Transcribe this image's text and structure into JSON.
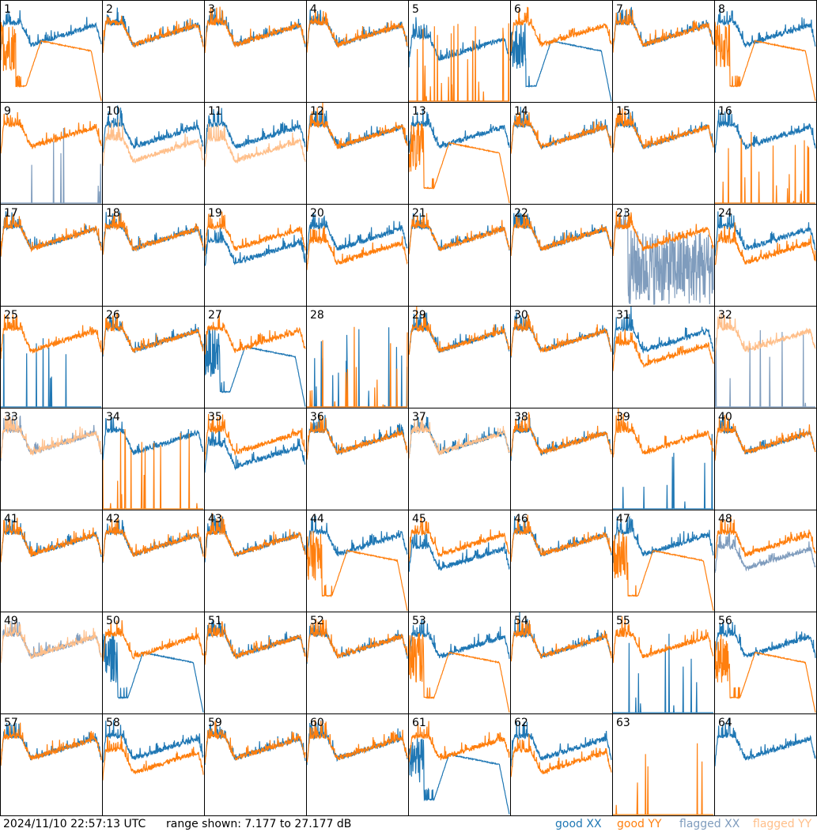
{
  "footer": {
    "timestamp": "2024/11/10 22:57:13 UTC",
    "range": "range shown: 7.177 to 27.177 dB"
  },
  "legend": [
    {
      "label": "good XX",
      "color": "#1f77b4"
    },
    {
      "label": "good YY",
      "color": "#ff7f0e"
    },
    {
      "label": "flagged XX",
      "color": "#7f9cbd"
    },
    {
      "label": "flagged YY",
      "color": "#ffbf8a"
    }
  ],
  "chart_data": {
    "type": "line",
    "title": "",
    "layout": "8x8 grid of small multiples",
    "ylim_db": [
      7.177,
      27.177
    ],
    "series_kinds": [
      "XX",
      "YY"
    ],
    "shape_legend": {
      "bp": "typical bandpass: early peak, dip, rising slope",
      "hump": "smooth hump with deep early dip and roll-off",
      "low": "bandpass shifted lower",
      "spikes": "mostly at floor with sparse spikes",
      "noisy": "dense noise across full range",
      "none": "not shown"
    },
    "panels": [
      {
        "id": "1",
        "xx": [
          "good",
          "bp"
        ],
        "yy": [
          "good",
          "hump"
        ]
      },
      {
        "id": "2",
        "xx": [
          "good",
          "bp"
        ],
        "yy": [
          "good",
          "bp"
        ]
      },
      {
        "id": "3",
        "xx": [
          "good",
          "bp"
        ],
        "yy": [
          "good",
          "bp"
        ]
      },
      {
        "id": "4",
        "xx": [
          "good",
          "bp"
        ],
        "yy": [
          "good",
          "bp"
        ]
      },
      {
        "id": "5",
        "xx": [
          "good",
          "low"
        ],
        "yy": [
          "good",
          "spikes"
        ]
      },
      {
        "id": "6",
        "xx": [
          "good",
          "hump"
        ],
        "yy": [
          "good",
          "bp"
        ]
      },
      {
        "id": "7",
        "xx": [
          "good",
          "bp"
        ],
        "yy": [
          "good",
          "bp"
        ]
      },
      {
        "id": "8",
        "xx": [
          "good",
          "bp"
        ],
        "yy": [
          "good",
          "hump"
        ]
      },
      {
        "id": "9",
        "xx": [
          "flagged",
          "spikes"
        ],
        "yy": [
          "good",
          "bp"
        ]
      },
      {
        "id": "10",
        "xx": [
          "good",
          "bp"
        ],
        "yy": [
          "flagged",
          "low"
        ]
      },
      {
        "id": "11",
        "xx": [
          "good",
          "bp"
        ],
        "yy": [
          "flagged",
          "low"
        ]
      },
      {
        "id": "12",
        "xx": [
          "good",
          "bp"
        ],
        "yy": [
          "good",
          "bp"
        ]
      },
      {
        "id": "13",
        "xx": [
          "good",
          "bp"
        ],
        "yy": [
          "good",
          "hump"
        ]
      },
      {
        "id": "14",
        "xx": [
          "good",
          "bp"
        ],
        "yy": [
          "good",
          "bp"
        ]
      },
      {
        "id": "15",
        "xx": [
          "good",
          "bp"
        ],
        "yy": [
          "good",
          "bp"
        ]
      },
      {
        "id": "16",
        "xx": [
          "good",
          "bp"
        ],
        "yy": [
          "good",
          "spikes"
        ]
      },
      {
        "id": "17",
        "xx": [
          "good",
          "bp"
        ],
        "yy": [
          "good",
          "bp"
        ]
      },
      {
        "id": "18",
        "xx": [
          "good",
          "bp"
        ],
        "yy": [
          "good",
          "bp"
        ]
      },
      {
        "id": "19",
        "xx": [
          "good",
          "low"
        ],
        "yy": [
          "good",
          "bp"
        ]
      },
      {
        "id": "20",
        "xx": [
          "good",
          "bp"
        ],
        "yy": [
          "good",
          "low"
        ]
      },
      {
        "id": "21",
        "xx": [
          "good",
          "bp"
        ],
        "yy": [
          "good",
          "bp"
        ]
      },
      {
        "id": "22",
        "xx": [
          "good",
          "bp"
        ],
        "yy": [
          "good",
          "bp"
        ]
      },
      {
        "id": "23",
        "xx": [
          "flagged",
          "noisy"
        ],
        "yy": [
          "good",
          "bp"
        ]
      },
      {
        "id": "24",
        "xx": [
          "good",
          "bp"
        ],
        "yy": [
          "good",
          "low"
        ]
      },
      {
        "id": "25",
        "xx": [
          "good",
          "spikes"
        ],
        "yy": [
          "good",
          "bp"
        ]
      },
      {
        "id": "26",
        "xx": [
          "good",
          "bp"
        ],
        "yy": [
          "good",
          "bp"
        ]
      },
      {
        "id": "27",
        "xx": [
          "good",
          "hump"
        ],
        "yy": [
          "good",
          "bp"
        ]
      },
      {
        "id": "28",
        "xx": [
          "good",
          "spikes"
        ],
        "yy": [
          "good",
          "spikes"
        ]
      },
      {
        "id": "29",
        "xx": [
          "good",
          "bp"
        ],
        "yy": [
          "good",
          "bp"
        ]
      },
      {
        "id": "30",
        "xx": [
          "good",
          "bp"
        ],
        "yy": [
          "good",
          "bp"
        ]
      },
      {
        "id": "31",
        "xx": [
          "good",
          "bp"
        ],
        "yy": [
          "good",
          "low"
        ]
      },
      {
        "id": "32",
        "xx": [
          "flagged",
          "spikes"
        ],
        "yy": [
          "flagged",
          "bp"
        ]
      },
      {
        "id": "33",
        "xx": [
          "flagged",
          "bp"
        ],
        "yy": [
          "flagged",
          "bp"
        ]
      },
      {
        "id": "34",
        "xx": [
          "good",
          "bp"
        ],
        "yy": [
          "good",
          "spikes"
        ]
      },
      {
        "id": "35",
        "xx": [
          "good",
          "low"
        ],
        "yy": [
          "good",
          "bp"
        ]
      },
      {
        "id": "36",
        "xx": [
          "good",
          "bp"
        ],
        "yy": [
          "good",
          "bp"
        ]
      },
      {
        "id": "37",
        "xx": [
          "good",
          "bp"
        ],
        "yy": [
          "flagged",
          "bp"
        ]
      },
      {
        "id": "38",
        "xx": [
          "good",
          "bp"
        ],
        "yy": [
          "good",
          "bp"
        ]
      },
      {
        "id": "39",
        "xx": [
          "good",
          "spikes"
        ],
        "yy": [
          "good",
          "bp"
        ]
      },
      {
        "id": "40",
        "xx": [
          "good",
          "bp"
        ],
        "yy": [
          "good",
          "bp"
        ]
      },
      {
        "id": "41",
        "xx": [
          "good",
          "bp"
        ],
        "yy": [
          "good",
          "bp"
        ]
      },
      {
        "id": "42",
        "xx": [
          "good",
          "bp"
        ],
        "yy": [
          "good",
          "bp"
        ]
      },
      {
        "id": "43",
        "xx": [
          "good",
          "bp"
        ],
        "yy": [
          "good",
          "bp"
        ]
      },
      {
        "id": "44",
        "xx": [
          "good",
          "bp"
        ],
        "yy": [
          "good",
          "hump"
        ]
      },
      {
        "id": "45",
        "xx": [
          "good",
          "low"
        ],
        "yy": [
          "good",
          "bp"
        ]
      },
      {
        "id": "46",
        "xx": [
          "good",
          "bp"
        ],
        "yy": [
          "good",
          "bp"
        ]
      },
      {
        "id": "47",
        "xx": [
          "good",
          "bp"
        ],
        "yy": [
          "good",
          "hump"
        ]
      },
      {
        "id": "48",
        "xx": [
          "flagged",
          "low"
        ],
        "yy": [
          "good",
          "bp"
        ]
      },
      {
        "id": "49",
        "xx": [
          "flagged",
          "bp"
        ],
        "yy": [
          "flagged",
          "bp"
        ]
      },
      {
        "id": "50",
        "xx": [
          "good",
          "hump"
        ],
        "yy": [
          "good",
          "bp"
        ]
      },
      {
        "id": "51",
        "xx": [
          "good",
          "bp"
        ],
        "yy": [
          "good",
          "bp"
        ]
      },
      {
        "id": "52",
        "xx": [
          "good",
          "bp"
        ],
        "yy": [
          "good",
          "bp"
        ]
      },
      {
        "id": "53",
        "xx": [
          "good",
          "bp"
        ],
        "yy": [
          "good",
          "hump"
        ]
      },
      {
        "id": "54",
        "xx": [
          "good",
          "bp"
        ],
        "yy": [
          "good",
          "bp"
        ]
      },
      {
        "id": "55",
        "xx": [
          "good",
          "spikes"
        ],
        "yy": [
          "good",
          "bp"
        ]
      },
      {
        "id": "56",
        "xx": [
          "good",
          "bp"
        ],
        "yy": [
          "good",
          "hump"
        ]
      },
      {
        "id": "57",
        "xx": [
          "good",
          "bp"
        ],
        "yy": [
          "good",
          "bp"
        ]
      },
      {
        "id": "58",
        "xx": [
          "good",
          "bp"
        ],
        "yy": [
          "good",
          "low"
        ]
      },
      {
        "id": "59",
        "xx": [
          "good",
          "bp"
        ],
        "yy": [
          "good",
          "bp"
        ]
      },
      {
        "id": "60",
        "xx": [
          "good",
          "bp"
        ],
        "yy": [
          "good",
          "bp"
        ]
      },
      {
        "id": "61",
        "xx": [
          "good",
          "hump"
        ],
        "yy": [
          "good",
          "bp"
        ]
      },
      {
        "id": "62",
        "xx": [
          "good",
          "bp"
        ],
        "yy": [
          "good",
          "low"
        ]
      },
      {
        "id": "63",
        "xx": [
          "good",
          "none"
        ],
        "yy": [
          "good",
          "spikes"
        ]
      },
      {
        "id": "64",
        "xx": [
          "good",
          "bp"
        ],
        "yy": [
          "good",
          "none"
        ]
      }
    ]
  }
}
